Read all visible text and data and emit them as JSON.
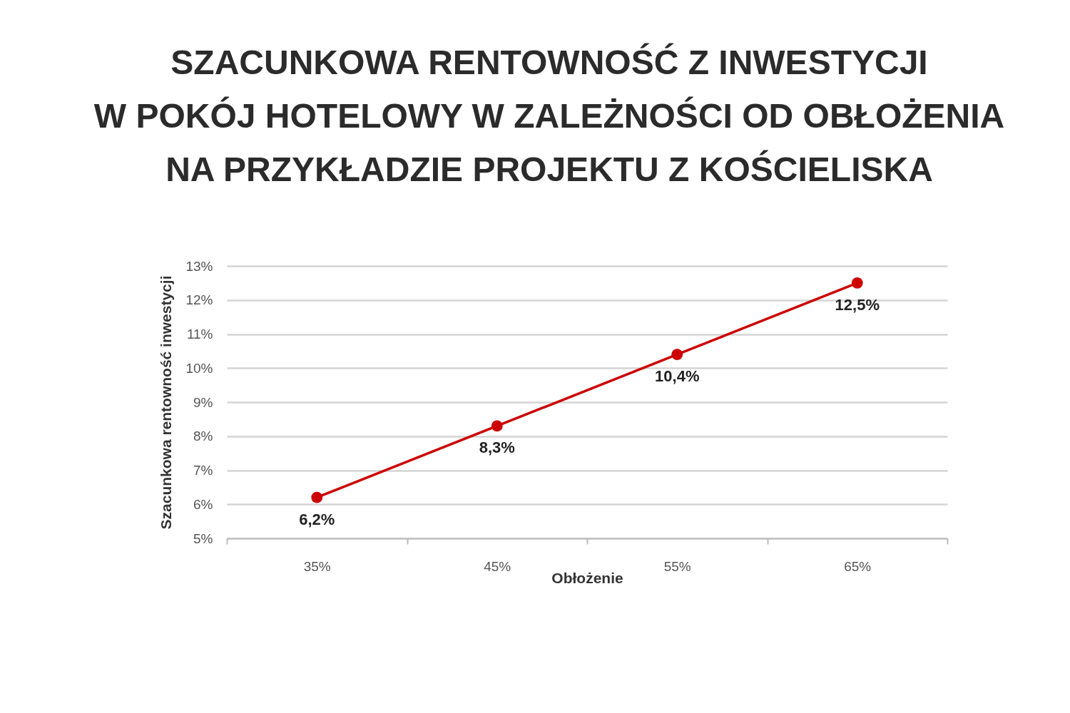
{
  "chart_data": {
    "type": "line",
    "title": "SZACUNKOWA RENTOWNOŚĆ Z INWESTYCJI\nW POKÓJ HOTELOWY W ZALEŻNOŚCI OD OBŁOŻENIA\nNA PRZYKŁADZIE PROJEKTU Z KOŚCIELISKA",
    "xlabel": "Obłożenie",
    "ylabel": "Szacunkowa rentowność inwestycji",
    "categories": [
      "35%",
      "45%",
      "55%",
      "65%"
    ],
    "values": [
      6.2,
      8.3,
      10.4,
      12.5
    ],
    "color": "#cc0000",
    "value_labels": [
      "6,2%",
      "8,3%",
      "10,4%",
      "12,5%"
    ],
    "ylim": [
      5,
      13
    ],
    "yticks": [
      {
        "value": 5,
        "label": "5%"
      },
      {
        "value": 6,
        "label": "6%"
      },
      {
        "value": 7,
        "label": "7%"
      },
      {
        "value": 8,
        "label": "8%"
      },
      {
        "value": 9,
        "label": "9%"
      },
      {
        "value": 10,
        "label": "10%"
      },
      {
        "value": 11,
        "label": "11%"
      },
      {
        "value": 12,
        "label": "12%"
      },
      {
        "value": 13,
        "label": "13%"
      }
    ],
    "grid": "y",
    "marker": "circle",
    "line_style": "solid"
  }
}
